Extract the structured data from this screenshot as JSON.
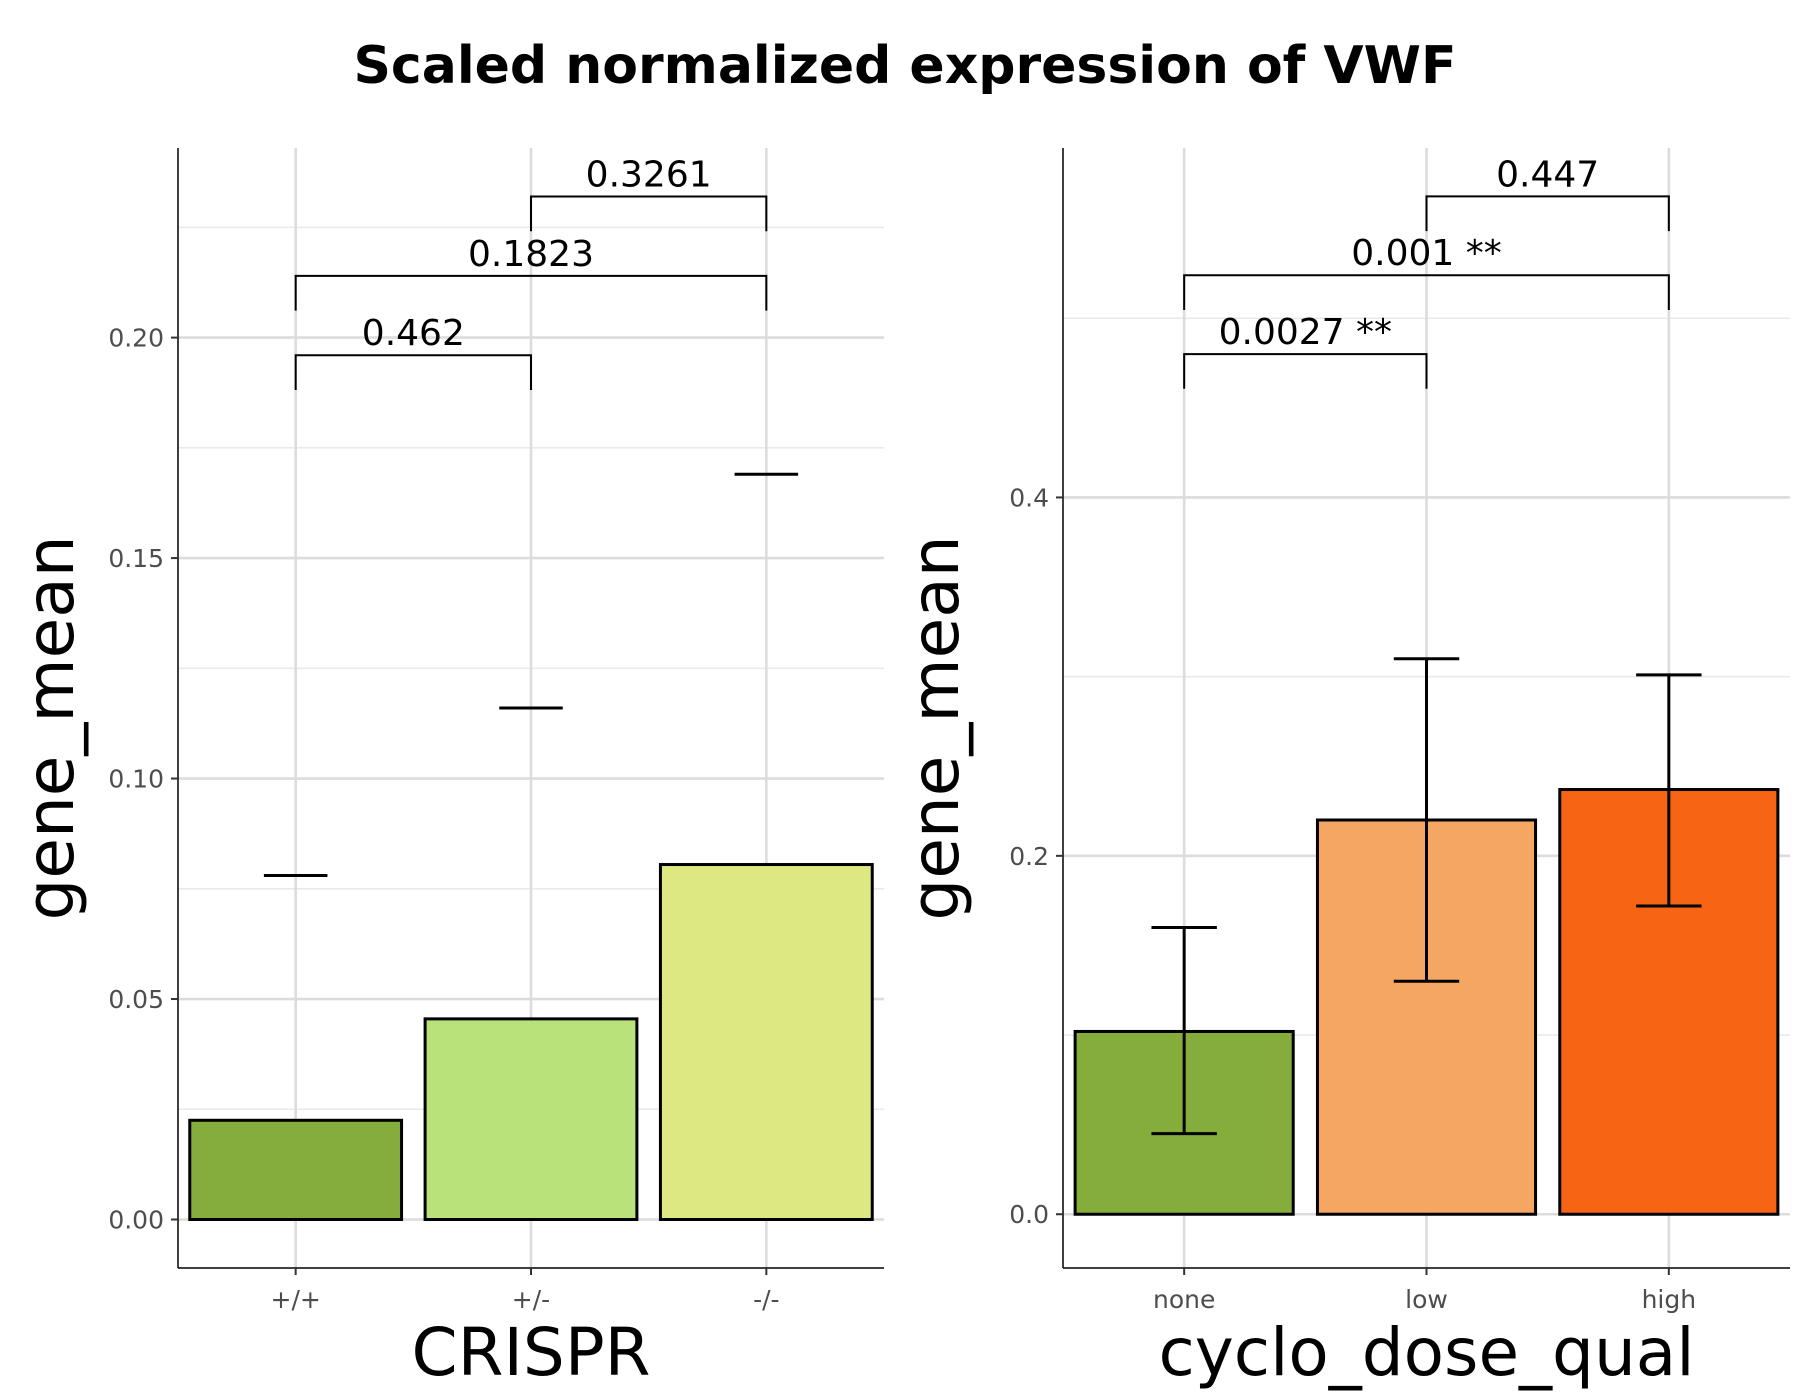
{
  "title": "Scaled normalized expression of VWF",
  "chart_data": [
    {
      "type": "bar",
      "xlabel": "CRISPR",
      "ylabel": "gene_mean",
      "categories": [
        "+/+",
        "+/-",
        "-/-"
      ],
      "values": [
        0.0225,
        0.0455,
        0.0805
      ],
      "error_bars": [
        {
          "low": null,
          "high": 0.078
        },
        {
          "low": null,
          "high": 0.116
        },
        {
          "low": null,
          "high": 0.169
        }
      ],
      "colors": [
        "#84AD3C",
        "#B9E27A",
        "#DEE882"
      ],
      "ylim": [
        -0.011,
        0.243
      ],
      "yticks": [
        0.0,
        0.05,
        0.1,
        0.15,
        0.2
      ],
      "ytick_labels": [
        "0.00",
        "0.05",
        "0.10",
        "0.15",
        "0.20"
      ],
      "grid": true,
      "comparisons": [
        {
          "from": 0,
          "to": 1,
          "y": 0.196,
          "label": "0.462"
        },
        {
          "from": 0,
          "to": 2,
          "y": 0.214,
          "label": "0.1823"
        },
        {
          "from": 1,
          "to": 2,
          "y": 0.232,
          "label": "0.3261"
        }
      ]
    },
    {
      "type": "bar",
      "xlabel": "cyclo_dose_qual",
      "ylabel": "gene_mean",
      "categories": [
        "none",
        "low",
        "high"
      ],
      "values": [
        0.102,
        0.22,
        0.237
      ],
      "error_bars": [
        {
          "low": 0.045,
          "high": 0.16
        },
        {
          "low": 0.13,
          "high": 0.31
        },
        {
          "low": 0.172,
          "high": 0.301
        }
      ],
      "colors": [
        "#84AD3C",
        "#F5A663",
        "#F76413"
      ],
      "ylim": [
        -0.03,
        0.595
      ],
      "yticks": [
        0.0,
        0.2,
        0.4
      ],
      "ytick_labels": [
        "0.0",
        "0.2",
        "0.4"
      ],
      "grid": true,
      "comparisons": [
        {
          "from": 0,
          "to": 1,
          "y": 0.48,
          "label": "0.0027 **"
        },
        {
          "from": 0,
          "to": 2,
          "y": 0.524,
          "label": "0.001 **"
        },
        {
          "from": 1,
          "to": 2,
          "y": 0.568,
          "label": "0.447"
        }
      ]
    }
  ]
}
